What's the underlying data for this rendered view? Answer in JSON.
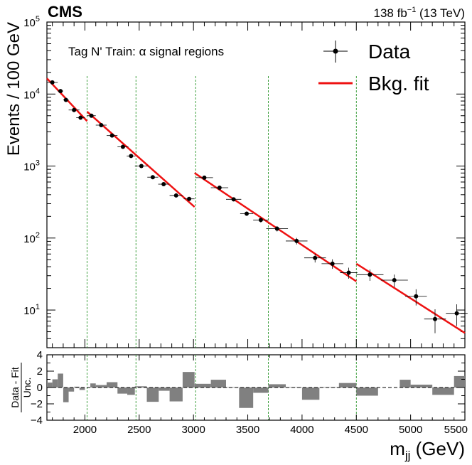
{
  "header": {
    "experiment": "CMS",
    "luminosity": "138 fb",
    "lumi_exp": "−1",
    "energy": " (13 TeV)"
  },
  "chart_data": [
    {
      "type": "scatter",
      "subtype": "histogram-fit",
      "annotation": "Tag N' Train: α signal regions",
      "ylabel": "Events / 100 GeV",
      "xlim": [
        1650,
        5500
      ],
      "ylim": [
        3,
        100000
      ],
      "yscale": "log",
      "y_tick_labels": [
        {
          "base": "10",
          "exp": "1",
          "value": 10
        },
        {
          "base": "10",
          "exp": "2",
          "value": 100
        },
        {
          "base": "10",
          "exp": "3",
          "value": 1000
        },
        {
          "base": "10",
          "exp": "4",
          "value": 10000
        },
        {
          "base": "10",
          "exp": "5",
          "value": 100000
        }
      ],
      "legend": {
        "placement": "top-right",
        "entries": [
          {
            "name": "Data",
            "marker": "point-errorbar",
            "color": "#000000"
          },
          {
            "name": "Bkg. fit",
            "marker": "line",
            "color": "#ee1111"
          }
        ]
      },
      "series": [
        {
          "name": "Data",
          "color": "#000000",
          "points": [
            {
              "x": 1700,
              "y": 14500,
              "xerr": 50
            },
            {
              "x": 1775,
              "y": 11000,
              "xerr": 25
            },
            {
              "x": 1825,
              "y": 8300,
              "xerr": 25
            },
            {
              "x": 1900,
              "y": 6000,
              "xerr": 50
            },
            {
              "x": 1960,
              "y": 4700,
              "xerr": 40
            },
            {
              "x": 2060,
              "y": 5000,
              "xerr": 40
            },
            {
              "x": 2150,
              "y": 3700,
              "xerr": 50
            },
            {
              "x": 2250,
              "y": 2650,
              "xerr": 50
            },
            {
              "x": 2350,
              "y": 1850,
              "xerr": 50
            },
            {
              "x": 2425,
              "y": 1380,
              "xerr": 40
            },
            {
              "x": 2520,
              "y": 1000,
              "xerr": 60
            },
            {
              "x": 2625,
              "y": 700,
              "xerr": 50
            },
            {
              "x": 2725,
              "y": 560,
              "xerr": 50
            },
            {
              "x": 2840,
              "y": 390,
              "xerr": 60
            },
            {
              "x": 2960,
              "y": 350,
              "xerr": 50
            },
            {
              "x": 3100,
              "y": 690,
              "xerr": 80
            },
            {
              "x": 3240,
              "y": 500,
              "xerr": 80
            },
            {
              "x": 3370,
              "y": 345,
              "xerr": 70
            },
            {
              "x": 3490,
              "y": 218,
              "xerr": 60
            },
            {
              "x": 3620,
              "y": 178,
              "xerr": 70
            },
            {
              "x": 3770,
              "y": 135,
              "xerr": 100
            },
            {
              "x": 3950,
              "y": 91,
              "xerr": 100
            },
            {
              "x": 4120,
              "y": 53,
              "xerr": 100
            },
            {
              "x": 4280,
              "y": 44,
              "xerr": 100
            },
            {
              "x": 4430,
              "y": 33,
              "xerr": 80
            },
            {
              "x": 4625,
              "y": 31,
              "xerr": 125
            },
            {
              "x": 4850,
              "y": 26,
              "xerr": 125
            },
            {
              "x": 5050,
              "y": 15.5,
              "xerr": 100
            },
            {
              "x": 5225,
              "y": 7.5,
              "xerr": 100
            },
            {
              "x": 5425,
              "y": 9.0,
              "xerr": 100
            }
          ]
        },
        {
          "name": "Bkg. fit",
          "color": "#ee1111",
          "segments": [
            {
              "x": [
                1650,
                2020
              ],
              "y": [
                16500,
                4200
              ]
            },
            {
              "x": [
                2020,
                3010
              ],
              "y": [
                5700,
                270
              ]
            },
            {
              "x": [
                3010,
                4500
              ],
              "y": [
                800,
                25
              ]
            },
            {
              "x": [
                4500,
                5500
              ],
              "y": [
                44,
                4.8
              ]
            }
          ]
        }
      ],
      "region_boundaries": [
        2020,
        2470,
        3020,
        3690,
        4500
      ]
    },
    {
      "type": "bar",
      "ylabel_top": "Data - Fit",
      "ylabel_bottom": "Unc.",
      "xlabel_main": "m",
      "xlabel_sub": "jj",
      "xlabel_unit": " (GeV)",
      "xlim": [
        1650,
        5500
      ],
      "ylim": [
        -4,
        4
      ],
      "x_ticks": [
        2000,
        2500,
        3000,
        3500,
        4000,
        4500,
        5000,
        5500
      ],
      "x_tick_labels": [
        "2000",
        "2500",
        "3000",
        "3500",
        "4000",
        "4500",
        "5000",
        "5500"
      ],
      "y_ticks": [
        -4,
        -2,
        0,
        2,
        4
      ],
      "y_tick_labels": [
        "−4",
        "−2",
        "0",
        "2",
        "4"
      ],
      "bars": [
        {
          "x0": 1650,
          "x1": 1700,
          "value": 0.6
        },
        {
          "x0": 1700,
          "x1": 1750,
          "value": 1.0
        },
        {
          "x0": 1750,
          "x1": 1800,
          "value": 1.7
        },
        {
          "x0": 1800,
          "x1": 1850,
          "value": -1.8
        },
        {
          "x0": 1850,
          "x1": 1900,
          "value": -0.5
        },
        {
          "x0": 1900,
          "x1": 1950,
          "value": 0.1
        },
        {
          "x0": 1950,
          "x1": 2000,
          "value": -0.3
        },
        {
          "x0": 2000,
          "x1": 2050,
          "value": 0.0
        },
        {
          "x0": 2050,
          "x1": 2100,
          "value": 0.5
        },
        {
          "x0": 2100,
          "x1": 2200,
          "value": 0.3
        },
        {
          "x0": 2200,
          "x1": 2300,
          "value": 0.65
        },
        {
          "x0": 2300,
          "x1": 2390,
          "value": -0.75
        },
        {
          "x0": 2390,
          "x1": 2460,
          "value": -0.9
        },
        {
          "x0": 2460,
          "x1": 2570,
          "value": 0.15
        },
        {
          "x0": 2570,
          "x1": 2680,
          "value": -1.75
        },
        {
          "x0": 2680,
          "x1": 2780,
          "value": -0.4
        },
        {
          "x0": 2780,
          "x1": 2900,
          "value": -1.7
        },
        {
          "x0": 2900,
          "x1": 3010,
          "value": 1.9
        },
        {
          "x0": 3010,
          "x1": 3160,
          "value": 0.45
        },
        {
          "x0": 3160,
          "x1": 3300,
          "value": 0.95
        },
        {
          "x0": 3300,
          "x1": 3420,
          "value": 0.05
        },
        {
          "x0": 3420,
          "x1": 3550,
          "value": -2.5
        },
        {
          "x0": 3550,
          "x1": 3690,
          "value": -0.65
        },
        {
          "x0": 3690,
          "x1": 3850,
          "value": 0.4
        },
        {
          "x0": 3850,
          "x1": 4000,
          "value": 0.05
        },
        {
          "x0": 4000,
          "x1": 4160,
          "value": -1.5
        },
        {
          "x0": 4160,
          "x1": 4340,
          "value": 0.05
        },
        {
          "x0": 4340,
          "x1": 4500,
          "value": 0.55
        },
        {
          "x0": 4500,
          "x1": 4700,
          "value": -1.0
        },
        {
          "x0": 4700,
          "x1": 4900,
          "value": 0.0
        },
        {
          "x0": 4900,
          "x1": 5000,
          "value": 0.95
        },
        {
          "x0": 5000,
          "x1": 5200,
          "value": 0.35
        },
        {
          "x0": 5200,
          "x1": 5400,
          "value": -0.9
        },
        {
          "x0": 5400,
          "x1": 5500,
          "value": 1.4
        }
      ]
    }
  ]
}
